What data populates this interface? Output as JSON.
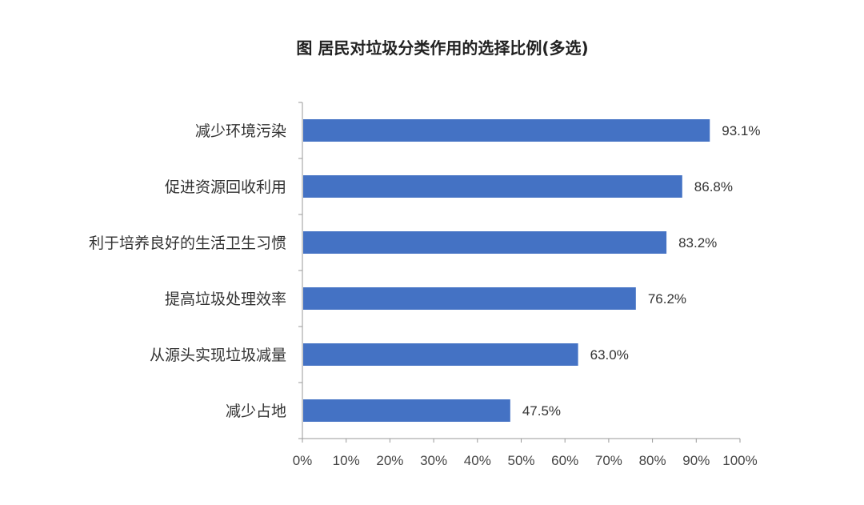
{
  "chart_data": {
    "type": "bar",
    "orientation": "horizontal",
    "title": "图 居民对垃圾分类作用的选择比例(多选)",
    "categories": [
      "减少环境污染",
      "促进资源回收利用",
      "利于培养良好的生活卫生习惯",
      "提高垃圾处理效率",
      "从源头实现垃圾减量",
      "减少占地"
    ],
    "values": [
      93.1,
      86.8,
      83.2,
      76.2,
      63.0,
      47.5
    ],
    "data_labels": [
      "93.1%",
      "86.8%",
      "83.2%",
      "76.2%",
      "63.0%",
      "47.5%"
    ],
    "xlim": [
      0,
      100
    ],
    "x_ticks": [
      "0%",
      "10%",
      "20%",
      "30%",
      "40%",
      "50%",
      "60%",
      "70%",
      "80%",
      "90%",
      "100%"
    ],
    "xlabel": "",
    "ylabel": "",
    "grid": false,
    "legend": "none",
    "bar_color": "#4472C4"
  }
}
